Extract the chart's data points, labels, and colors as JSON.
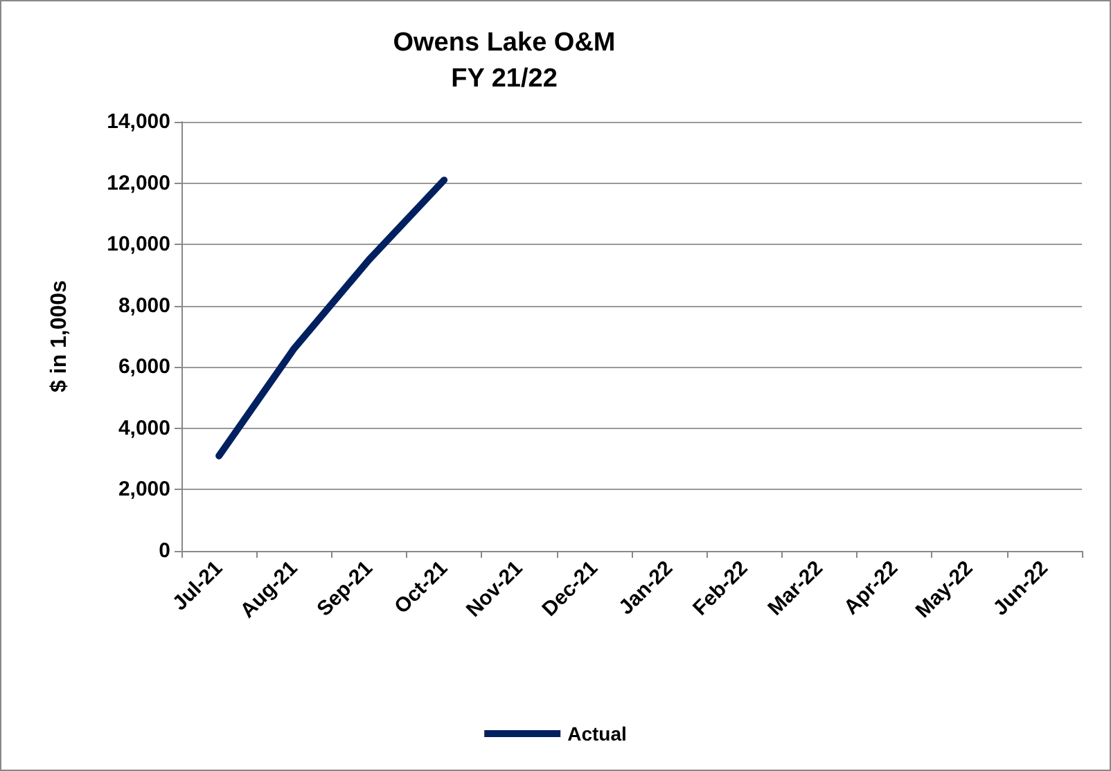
{
  "chart_data": {
    "type": "line",
    "title": "Owens Lake O&M\nFY 21/22",
    "ylabel": "$ in 1,000s",
    "categories": [
      "Jul-21",
      "Aug-21",
      "Sep-21",
      "Oct-21",
      "Nov-21",
      "Dec-21",
      "Jan-22",
      "Feb-22",
      "Mar-22",
      "Apr-22",
      "May-22",
      "Jun-22"
    ],
    "series": [
      {
        "name": "Actual",
        "color": "#002060",
        "values": [
          3100,
          6600,
          9500,
          12100,
          null,
          null,
          null,
          null,
          null,
          null,
          null,
          null
        ]
      }
    ],
    "ylim": [
      0,
      14000
    ],
    "yticks": [
      0,
      {
        "value": 2000,
        "label": "2,000"
      },
      {
        "value": 4000,
        "label": "4,000"
      },
      {
        "value": 6000,
        "label": "6,000"
      },
      {
        "value": 8000,
        "label": "8,000"
      },
      {
        "value": 10000,
        "label": "10,000"
      },
      {
        "value": 12000,
        "label": "12,000"
      },
      {
        "value": 14000,
        "label": "14,000"
      }
    ],
    "grid": "y",
    "legend": "bottom",
    "marker": "none",
    "line_style": "solid"
  }
}
